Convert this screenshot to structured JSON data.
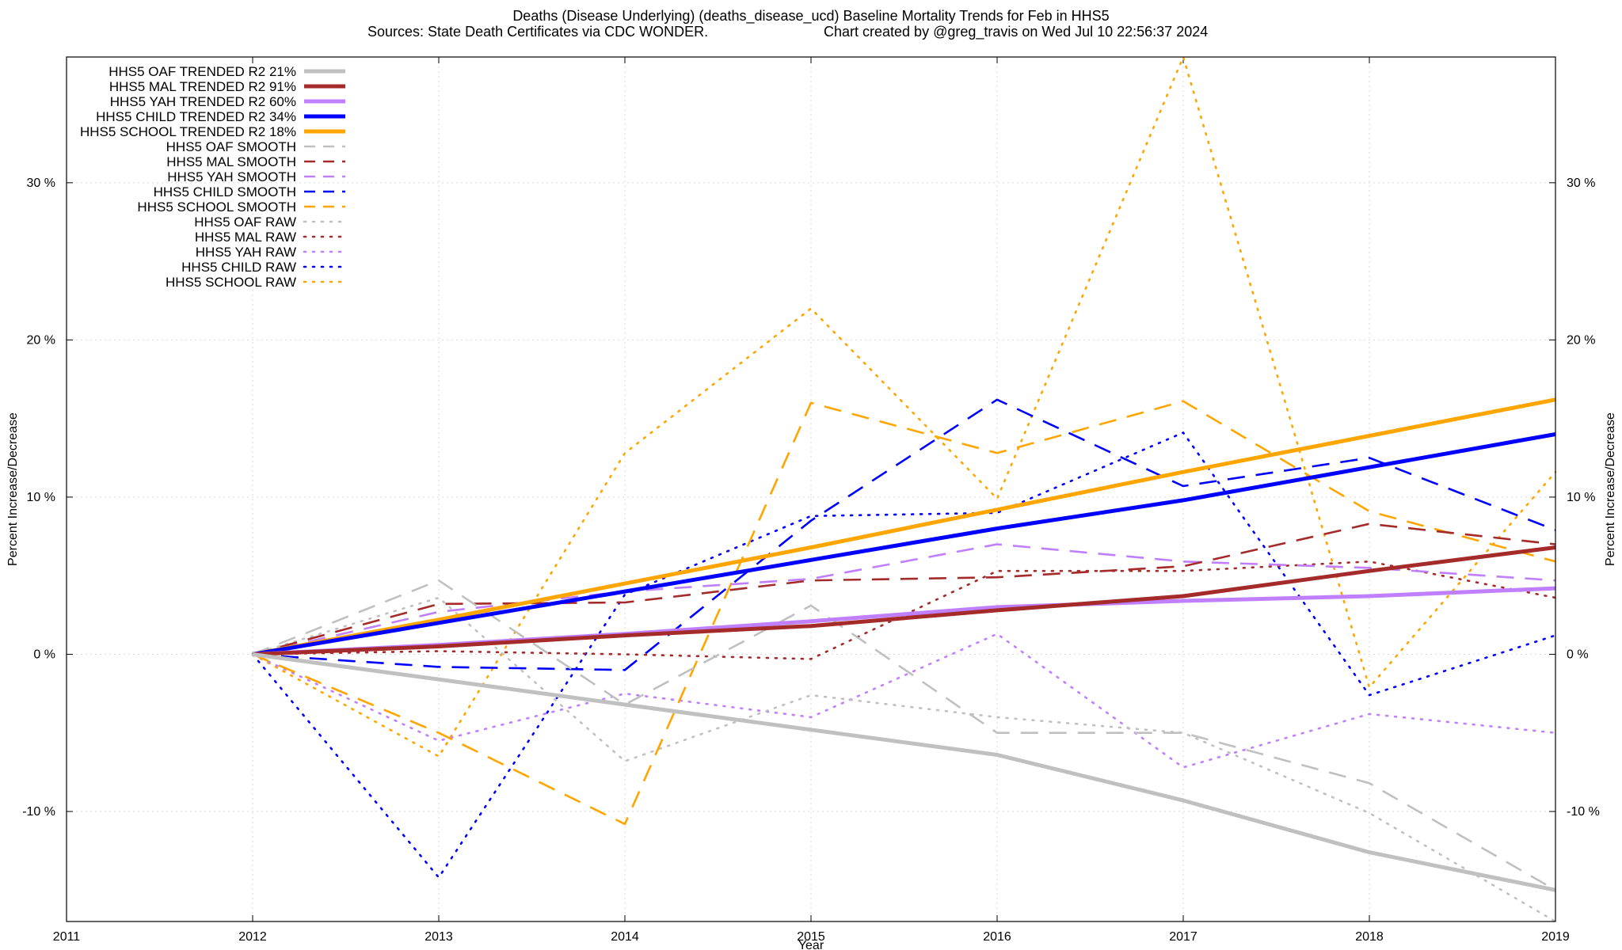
{
  "chart_data": {
    "type": "line",
    "title_line1": "Deaths (Disease Underlying) (deaths_disease_ucd)  Baseline Mortality Trends for Feb in HHS5",
    "title_line2_left": "Sources: State Death Certificates via CDC WONDER.",
    "title_line2_right": "Chart created by @greg_travis on Wed Jul 10 22:56:37 2024",
    "xlabel": "Year",
    "ylabel_left": "Percent Increase/Decrease",
    "ylabel_right": "Percent Increase/Decrease",
    "xlim": [
      2011,
      2019
    ],
    "ylim": [
      -17,
      38
    ],
    "x_ticks": [
      2011,
      2012,
      2013,
      2014,
      2015,
      2016,
      2017,
      2018,
      2019
    ],
    "x_tick_labels": [
      "2011",
      "2012",
      "2013",
      "2014",
      "2015",
      "2016",
      "2017",
      "2018",
      "2019"
    ],
    "y_ticks": [
      -10,
      0,
      10,
      20,
      30
    ],
    "y_tick_labels": [
      "-10 %",
      "0 %",
      "10 %",
      "20 %",
      "30 %"
    ],
    "grid": true,
    "legend_position": "top-left",
    "x": [
      2012,
      2013,
      2014,
      2015,
      2016,
      2017,
      2018,
      2019
    ],
    "series": [
      {
        "name": "HHS5 OAF TRENDED R2  21%",
        "color": "#c0c0c0",
        "style": "solid",
        "values": [
          0,
          -1.6,
          -3.2,
          -4.8,
          -6.4,
          -9.3,
          -12.6,
          -15.0
        ]
      },
      {
        "name": "HHS5 MAL TRENDED R2  91%",
        "color": "#a52a2a",
        "style": "solid",
        "values": [
          0,
          0.5,
          1.2,
          1.8,
          2.8,
          3.7,
          5.3,
          6.8
        ]
      },
      {
        "name": "HHS5 YAH TRENDED R2  60%",
        "color": "#bf7fff",
        "style": "solid",
        "values": [
          0,
          0.6,
          1.3,
          2.1,
          3.0,
          3.4,
          3.7,
          4.2
        ]
      },
      {
        "name": "HHS5 CHILD TRENDED R2  34%",
        "color": "#0000ff",
        "style": "solid",
        "values": [
          0,
          2.0,
          4.0,
          6.0,
          8.0,
          9.8,
          11.9,
          14.0
        ]
      },
      {
        "name": "HHS5 SCHOOL TRENDED R2  18%",
        "color": "#ffa500",
        "style": "solid",
        "values": [
          0,
          2.2,
          4.5,
          6.8,
          9.2,
          11.6,
          13.9,
          16.2
        ]
      },
      {
        "name": "HHS5 OAF SMOOTH",
        "color": "#c0c0c0",
        "style": "dashed",
        "values": [
          0,
          4.7,
          -3.2,
          3.1,
          -5.0,
          -5.0,
          -8.2,
          -15.0
        ]
      },
      {
        "name": "HHS5 MAL SMOOTH",
        "color": "#a52a2a",
        "style": "dashed",
        "values": [
          0,
          3.2,
          3.3,
          4.7,
          4.9,
          5.6,
          8.3,
          7.0
        ]
      },
      {
        "name": "HHS5 YAH SMOOTH",
        "color": "#bf7fff",
        "style": "dashed",
        "values": [
          0,
          2.7,
          4.0,
          4.8,
          7.0,
          5.9,
          5.5,
          4.7
        ]
      },
      {
        "name": "HHS5 CHILD SMOOTH",
        "color": "#0000ff",
        "style": "dashed",
        "values": [
          0,
          -0.8,
          -1.0,
          8.5,
          16.2,
          10.7,
          12.5,
          7.9
        ]
      },
      {
        "name": "HHS5 SCHOOL SMOOTH",
        "color": "#ffa500",
        "style": "dashed",
        "values": [
          0,
          -5.0,
          -10.8,
          16.0,
          12.8,
          16.1,
          9.1,
          5.9
        ]
      },
      {
        "name": "HHS5 OAF RAW",
        "color": "#c0c0c0",
        "style": "dotted",
        "values": [
          0,
          3.6,
          -6.8,
          -2.6,
          -4.0,
          -5.0,
          -10.1,
          -17.0
        ]
      },
      {
        "name": "HHS5 MAL RAW",
        "color": "#a52a2a",
        "style": "dotted",
        "values": [
          0,
          0.2,
          0.0,
          -0.3,
          5.3,
          5.3,
          5.9,
          3.6
        ]
      },
      {
        "name": "HHS5 YAH RAW",
        "color": "#bf7fff",
        "style": "dotted",
        "values": [
          0,
          -5.5,
          -2.5,
          -4.0,
          1.3,
          -7.2,
          -3.8,
          -5.0
        ]
      },
      {
        "name": "HHS5 CHILD RAW",
        "color": "#0000ff",
        "style": "dotted",
        "values": [
          0,
          -14.2,
          3.8,
          8.8,
          9.0,
          14.1,
          -2.6,
          1.2
        ]
      },
      {
        "name": "HHS5 SCHOOL RAW",
        "color": "#ffa500",
        "style": "dotted",
        "values": [
          0,
          -6.5,
          12.8,
          22.0,
          9.9,
          38.0,
          -2.1,
          11.6
        ]
      }
    ]
  }
}
